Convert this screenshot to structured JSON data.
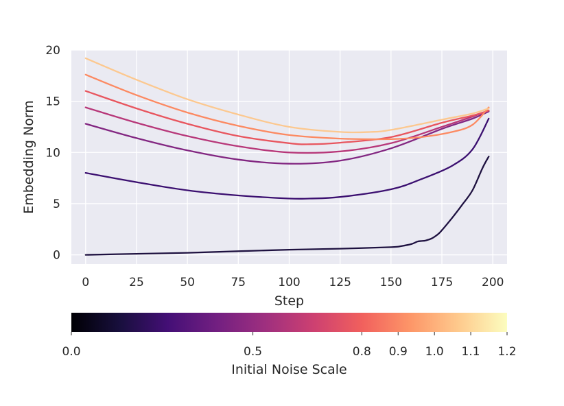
{
  "chart_data": {
    "type": "line",
    "xlabel": "Step",
    "ylabel": "Embedding Norm",
    "xlim": [
      -7,
      207
    ],
    "ylim": [
      -0.9,
      20
    ],
    "xticks": [
      0,
      25,
      50,
      75,
      100,
      125,
      150,
      175,
      200
    ],
    "yticks": [
      0,
      5,
      10,
      15,
      20
    ],
    "grid": true,
    "background": "#eaeaf2",
    "colorbar": {
      "label": "Initial Noise Scale",
      "ticks": [
        "0.0",
        "0.5",
        "0.8",
        "0.9",
        "1.0",
        "1.1",
        "1.2"
      ],
      "tick_values": [
        0.0,
        0.5,
        0.8,
        0.9,
        1.0,
        1.1,
        1.2
      ],
      "range": [
        0.0,
        1.2
      ],
      "colormap": "magma",
      "stops": [
        "#000004",
        "#180f3d",
        "#440f76",
        "#721f81",
        "#9e2f7f",
        "#cd4071",
        "#f1605d",
        "#fd9668",
        "#feca8d",
        "#fcfdbf"
      ]
    },
    "series": [
      {
        "noise_scale": 0.0,
        "color": "#1e1140",
        "x": [
          0,
          25,
          50,
          75,
          100,
          125,
          150,
          155,
          160,
          163,
          165,
          167,
          170,
          173,
          175,
          180,
          185,
          190,
          195,
          198
        ],
        "y": [
          0.0,
          0.1,
          0.2,
          0.35,
          0.5,
          0.6,
          0.75,
          0.85,
          1.05,
          1.3,
          1.35,
          1.4,
          1.6,
          2.0,
          2.4,
          3.6,
          4.9,
          6.3,
          8.5,
          9.6
        ]
      },
      {
        "noise_scale": 0.5,
        "color": "#3b0f70",
        "x": [
          0,
          25,
          50,
          75,
          100,
          110,
          125,
          150,
          165,
          180,
          190,
          198
        ],
        "y": [
          8.0,
          7.1,
          6.3,
          5.8,
          5.5,
          5.5,
          5.65,
          6.4,
          7.4,
          8.7,
          10.3,
          13.3
        ]
      },
      {
        "noise_scale": 0.8,
        "color": "#822681",
        "x": [
          0,
          25,
          50,
          75,
          100,
          125,
          150,
          175,
          190,
          198
        ],
        "y": [
          12.8,
          11.4,
          10.2,
          9.3,
          8.9,
          9.2,
          10.4,
          12.3,
          13.3,
          14.0
        ]
      },
      {
        "noise_scale": 0.9,
        "color": "#b73779",
        "x": [
          0,
          25,
          50,
          75,
          100,
          125,
          150,
          175,
          190,
          198
        ],
        "y": [
          14.4,
          12.9,
          11.6,
          10.6,
          10.0,
          10.1,
          10.9,
          12.5,
          13.5,
          14.1
        ]
      },
      {
        "noise_scale": 1.0,
        "color": "#e8555e",
        "x": [
          0,
          25,
          50,
          75,
          100,
          110,
          125,
          150,
          175,
          190,
          198
        ],
        "y": [
          16.0,
          14.3,
          12.8,
          11.6,
          10.9,
          10.8,
          10.95,
          11.5,
          12.9,
          13.6,
          14.1
        ]
      },
      {
        "noise_scale": 1.1,
        "color": "#fc8961",
        "x": [
          0,
          25,
          50,
          75,
          100,
          125,
          150,
          165,
          180,
          190,
          198
        ],
        "y": [
          17.6,
          15.6,
          13.9,
          12.6,
          11.7,
          11.35,
          11.3,
          11.5,
          12.0,
          12.7,
          14.4
        ]
      },
      {
        "noise_scale": 1.2,
        "color": "#fcc88f",
        "x": [
          0,
          25,
          50,
          75,
          100,
          125,
          140,
          150,
          175,
          190,
          198
        ],
        "y": [
          19.2,
          17.1,
          15.2,
          13.7,
          12.5,
          12.0,
          12.0,
          12.2,
          13.2,
          13.8,
          14.3
        ]
      }
    ]
  }
}
